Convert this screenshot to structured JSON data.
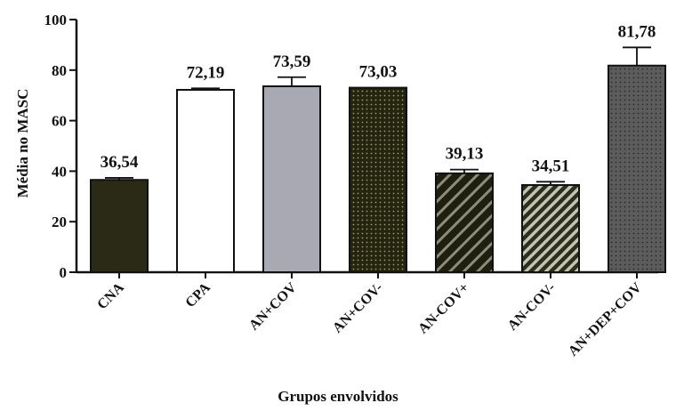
{
  "chart_data": {
    "type": "bar",
    "title": "",
    "xlabel": "Grupos envolvidos",
    "ylabel": "Média no  MASC",
    "ylim": [
      0,
      100
    ],
    "yticks": [
      0,
      20,
      40,
      60,
      80,
      100
    ],
    "yticks_text": [
      "0",
      "20",
      "40",
      "60",
      "80",
      "100"
    ],
    "categories": [
      "CNA",
      "CPA",
      "AN+COV",
      "AN+COV-",
      "AN-COV+",
      "AN-COV-",
      "AN+DEP+COV"
    ],
    "values": [
      36.54,
      72.19,
      73.59,
      73.03,
      39.13,
      34.51,
      81.78
    ],
    "value_labels": [
      "36,54",
      "72,19",
      "73,59",
      "73,03",
      "39,13",
      "34,51",
      "81,78"
    ],
    "errors": [
      0.8,
      0.6,
      3.6,
      0,
      1.5,
      1.3,
      7.2
    ],
    "bar_styles": [
      {
        "fill": "#2a2a17",
        "pattern": "solid"
      },
      {
        "fill": "#ffffff",
        "pattern": "solid"
      },
      {
        "fill": "#a9a9b4",
        "pattern": "solid"
      },
      {
        "fill": "#25250f",
        "pattern": "dots-light"
      },
      {
        "fill": "#1f1f10",
        "pattern": "diagonal-stripes"
      },
      {
        "fill": "#2e2e1c",
        "pattern": "diagonal-stripes-light"
      },
      {
        "fill": "#5e5e5e",
        "pattern": "dots-dark"
      }
    ],
    "legend": "none",
    "grid": false
  }
}
